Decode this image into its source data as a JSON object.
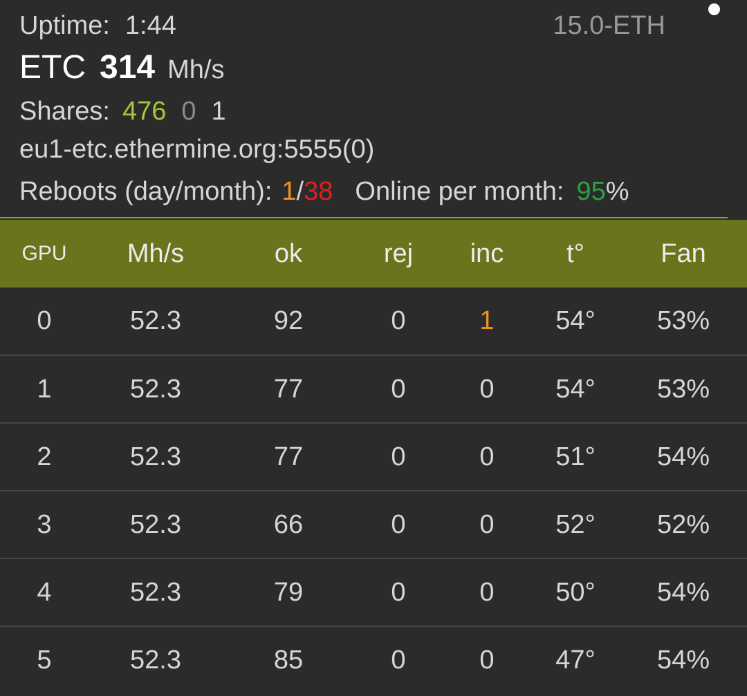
{
  "header": {
    "uptime_label": "Uptime:",
    "uptime_value": "1:44",
    "version": "15.0-ETH",
    "coin": "ETC",
    "hashrate": "314",
    "hashrate_unit": "Mh/s",
    "shares_label": "Shares:",
    "shares_accepted": "476",
    "shares_rejected": "0",
    "shares_invalid": "1",
    "pool": "eu1-etc.ethermine.org:5555(0)",
    "reboots_label": "Reboots (day/month):",
    "reboots_day": "1",
    "reboots_sep": "/",
    "reboots_month": "38",
    "online_label": "Online per month:",
    "online_value": "95",
    "online_unit": "%"
  },
  "colors": {
    "background": "#2b2b2b",
    "header_bar": "#6b731d",
    "accepted": "#a4c639",
    "temperature": "#2196f3",
    "warning": "#f0931e",
    "error": "#e0201e",
    "online": "#2ea043"
  },
  "table": {
    "columns": [
      "GPU",
      "Mh/s",
      "ok",
      "rej",
      "inc",
      "t°",
      "Fan"
    ],
    "rows": [
      {
        "gpu": "0",
        "mhs": "52.3",
        "ok": "92",
        "rej": "0",
        "inc": "1",
        "temp": "54°",
        "fan": "53%"
      },
      {
        "gpu": "1",
        "mhs": "52.3",
        "ok": "77",
        "rej": "0",
        "inc": "0",
        "temp": "54°",
        "fan": "53%"
      },
      {
        "gpu": "2",
        "mhs": "52.3",
        "ok": "77",
        "rej": "0",
        "inc": "0",
        "temp": "51°",
        "fan": "54%"
      },
      {
        "gpu": "3",
        "mhs": "52.3",
        "ok": "66",
        "rej": "0",
        "inc": "0",
        "temp": "52°",
        "fan": "52%"
      },
      {
        "gpu": "4",
        "mhs": "52.3",
        "ok": "79",
        "rej": "0",
        "inc": "0",
        "temp": "50°",
        "fan": "54%"
      },
      {
        "gpu": "5",
        "mhs": "52.3",
        "ok": "85",
        "rej": "0",
        "inc": "0",
        "temp": "47°",
        "fan": "54%"
      }
    ]
  }
}
